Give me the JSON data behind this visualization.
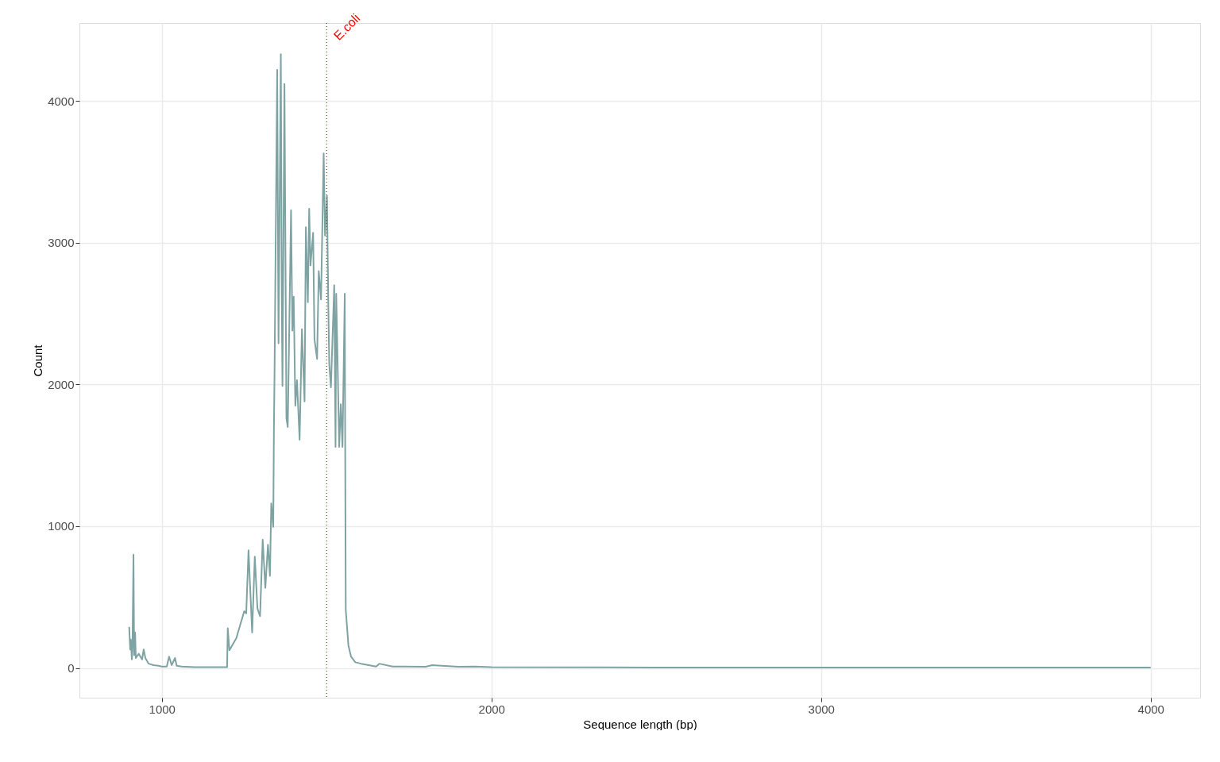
{
  "chart_data": {
    "type": "line",
    "xlabel": "Sequence length (bp)",
    "ylabel": "Count",
    "x": [
      901,
      904,
      906,
      909,
      911,
      914,
      916,
      919,
      921,
      930,
      940,
      945,
      950,
      960,
      975,
      990,
      1000,
      1015,
      1022,
      1030,
      1040,
      1045,
      1060,
      1100,
      1150,
      1198,
      1200,
      1205,
      1226,
      1250,
      1256,
      1263,
      1274,
      1282,
      1290,
      1298,
      1306,
      1314,
      1322,
      1328,
      1332,
      1338,
      1340,
      1342,
      1350,
      1354,
      1361,
      1364,
      1366,
      1372,
      1378,
      1382,
      1392,
      1396,
      1400,
      1405,
      1410,
      1418,
      1425,
      1433,
      1437,
      1443,
      1447,
      1451,
      1459,
      1463,
      1471,
      1476,
      1483,
      1491,
      1495,
      1501,
      1505,
      1508,
      1513,
      1523,
      1527,
      1529,
      1533,
      1538,
      1543,
      1548,
      1555,
      1556,
      1558,
      1566,
      1574,
      1587,
      1605,
      1650,
      1660,
      1700,
      1800,
      1820,
      1900,
      1950,
      2000,
      2500,
      3000,
      3500,
      4000
    ],
    "series": [
      {
        "color": "#7fa3a3",
        "values": [
          290,
          130,
          200,
          60,
          150,
          800,
          90,
          250,
          70,
          100,
          60,
          130,
          70,
          30,
          20,
          15,
          10,
          10,
          80,
          20,
          70,
          15,
          10,
          5,
          5,
          5,
          280,
          125,
          210,
          400,
          385,
          830,
          250,
          785,
          420,
          365,
          905,
          565,
          870,
          650,
          1160,
          995,
          1675,
          2100,
          4220,
          2290,
          4330,
          2560,
          1990,
          4120,
          1760,
          1700,
          3230,
          2380,
          2620,
          1850,
          2030,
          1610,
          2390,
          1880,
          3110,
          2580,
          3240,
          2840,
          3070,
          2320,
          2180,
          2800,
          2600,
          3630,
          3050,
          3330,
          2560,
          2140,
          1980,
          2700,
          1560,
          2640,
          2190,
          1560,
          1860,
          1560,
          2640,
          1760,
          410,
          160,
          80,
          40,
          30,
          10,
          30,
          10,
          8,
          20,
          8,
          10,
          5,
          3,
          3,
          3,
          3
        ]
      }
    ],
    "xlim": [
      750,
      4150
    ],
    "ylim": [
      -210,
      4550
    ],
    "xticks": [
      1000,
      2000,
      3000,
      4000
    ],
    "yticks": [
      0,
      1000,
      2000,
      3000,
      4000
    ],
    "grid": true,
    "line_style": "solid",
    "ref_lines": [
      {
        "axis": "x",
        "value": 1500,
        "label": "E.coli",
        "color": "#ff0000",
        "line_style": "dotted"
      }
    ]
  }
}
